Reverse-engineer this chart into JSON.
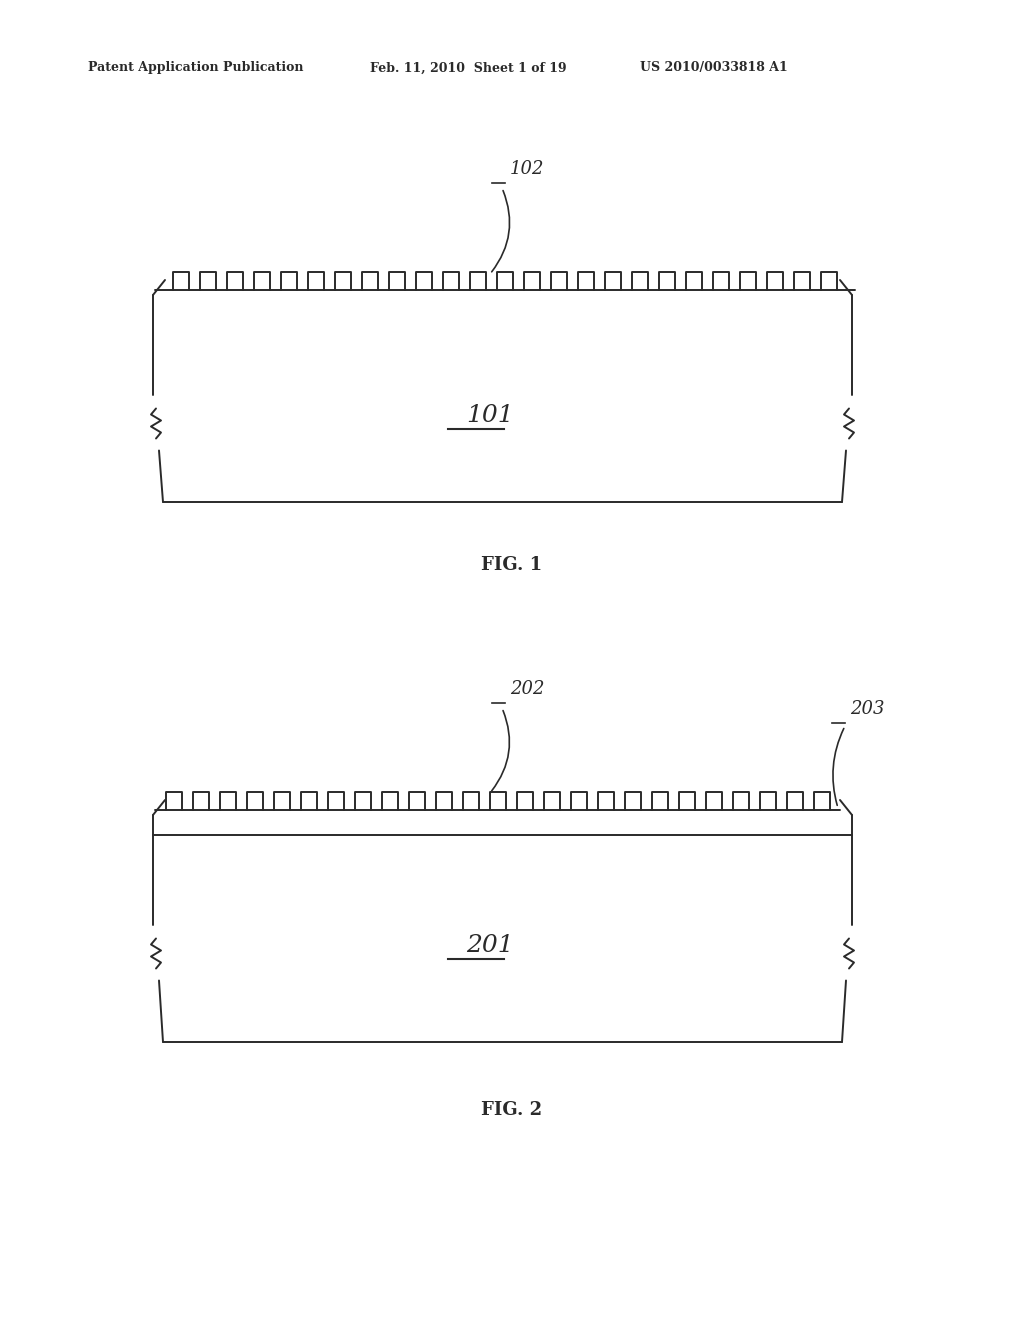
{
  "background_color": "#ffffff",
  "text_color": "#000000",
  "line_color": "#2a2a2a",
  "line_width": 1.4,
  "header_text_left": "Patent Application Publication",
  "header_text_mid": "Feb. 11, 2010  Sheet 1 of 19",
  "header_text_right": "US 2010/0033818 A1",
  "fig1_label": "FIG. 1",
  "fig2_label": "FIG. 2",
  "fig1_ref101": "101",
  "fig1_ref102": "102",
  "fig2_ref201": "201",
  "fig2_ref202": "202",
  "fig2_ref203": "203"
}
